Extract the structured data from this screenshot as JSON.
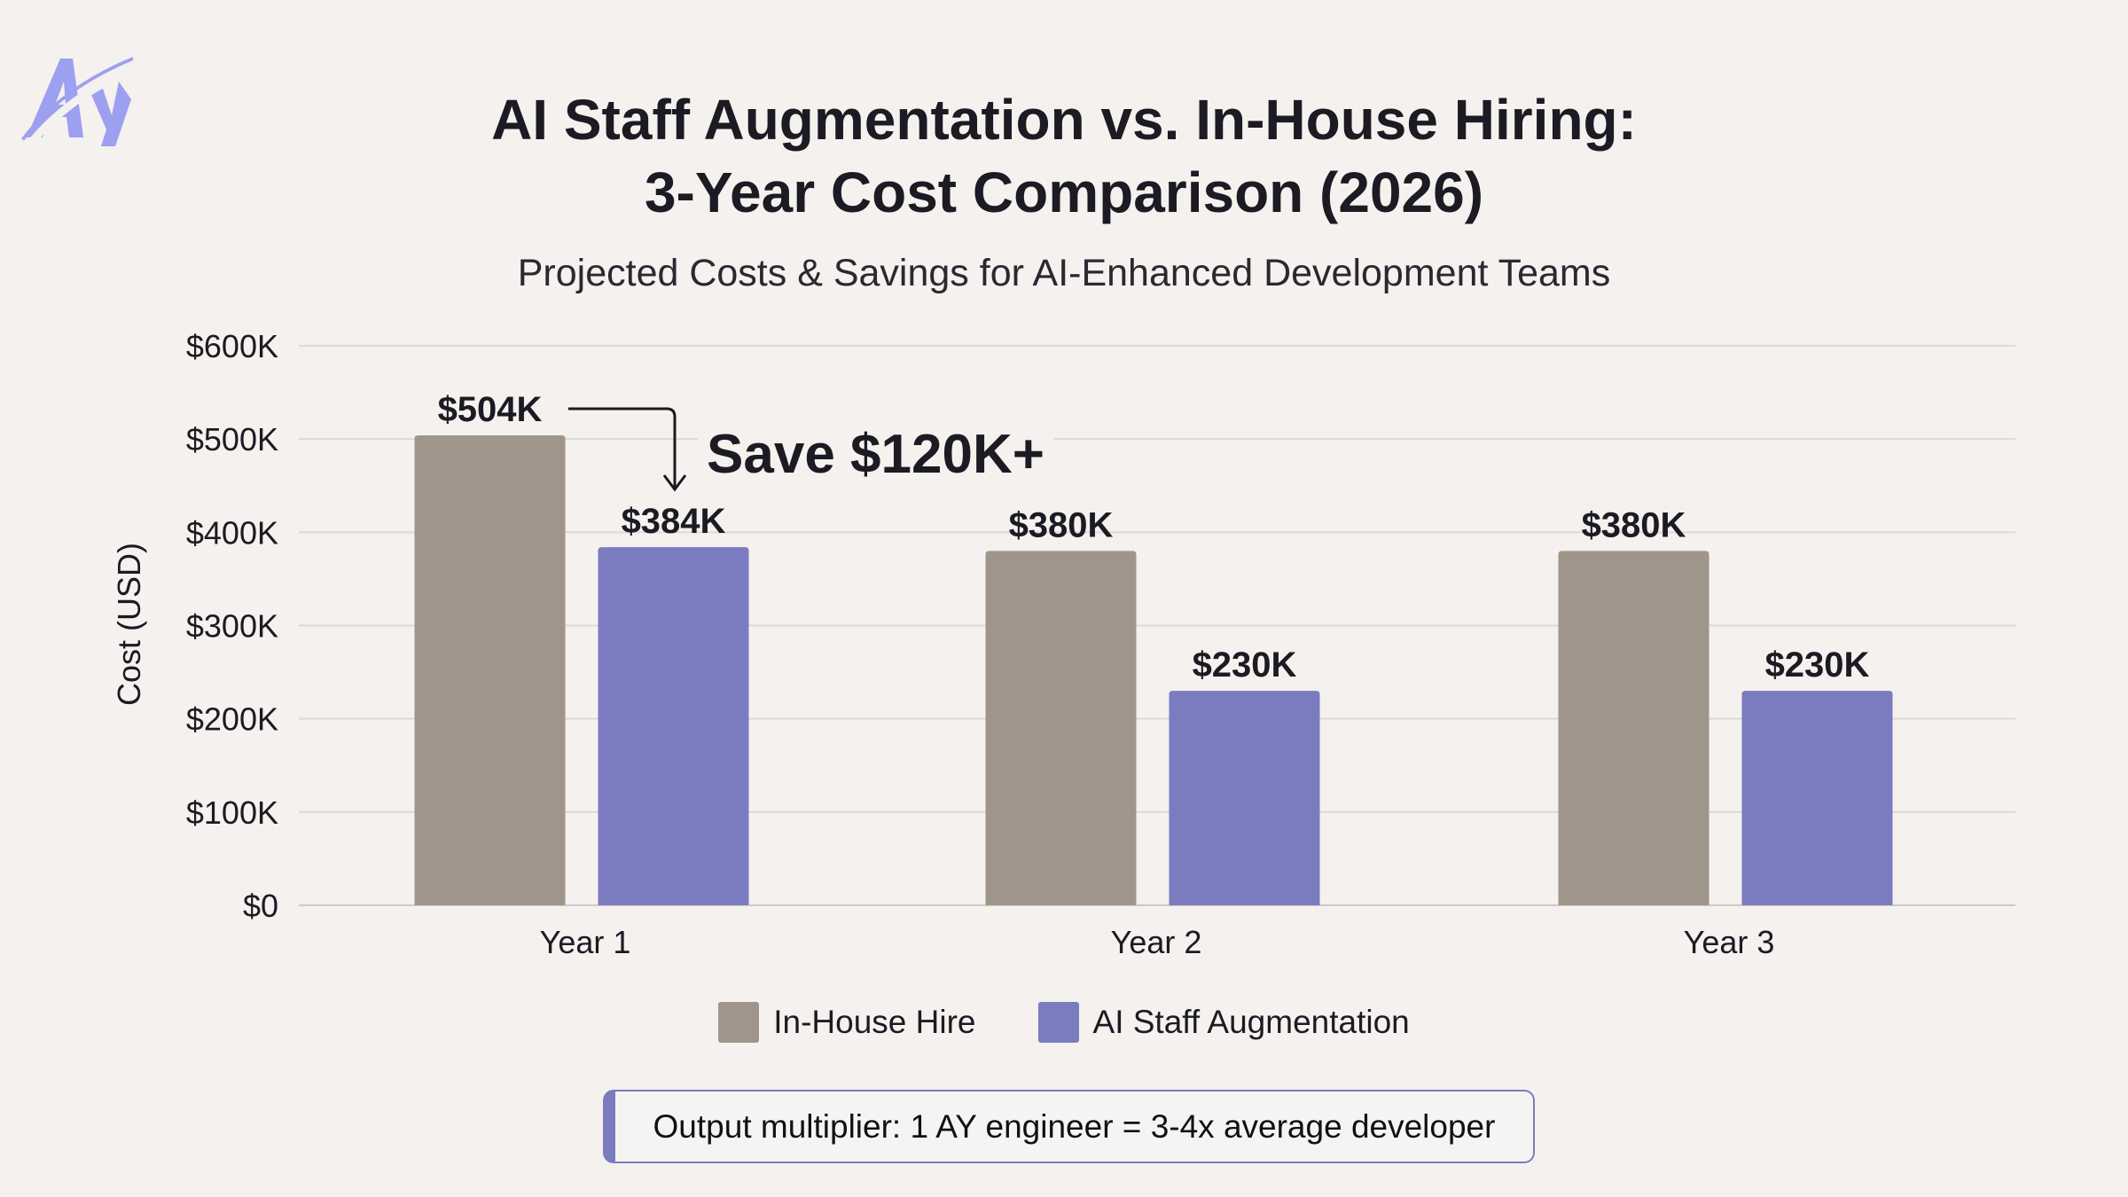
{
  "logo": {
    "text": "AY",
    "color": "#9d9ff0"
  },
  "title_line1": "AI Staff Augmentation vs. In-House Hiring:",
  "title_line2": "3-Year Cost Comparison (2026)",
  "subtitle": "Projected Costs & Savings for AI-Enhanced Development Teams",
  "chart_data": {
    "type": "bar",
    "categories": [
      "Year 1",
      "Year 2",
      "Year 3"
    ],
    "series": [
      {
        "name": "In-House Hire",
        "values": [
          504,
          380,
          380
        ],
        "labels": [
          "$504K",
          "$380K",
          "$380K"
        ],
        "color": "#a0958a"
      },
      {
        "name": "AI Staff Augmentation",
        "values": [
          384,
          230,
          230
        ],
        "labels": [
          "$384K",
          "$230K",
          "$230K"
        ],
        "color": "#7b7cbf"
      }
    ],
    "ylabel": "Cost (USD)",
    "yunit": "thousands USD",
    "ylim": [
      0,
      600
    ],
    "yticks": [
      0,
      100,
      200,
      300,
      400,
      500,
      600
    ],
    "ytick_labels": [
      "$0",
      "$100K",
      "$200K",
      "$300K",
      "$400K",
      "$500K",
      "$600K"
    ],
    "grid": true,
    "legend": "bottom",
    "annotation": "Save $120K+"
  },
  "note": "Output multiplier: 1 AY engineer = 3-4x average developer"
}
